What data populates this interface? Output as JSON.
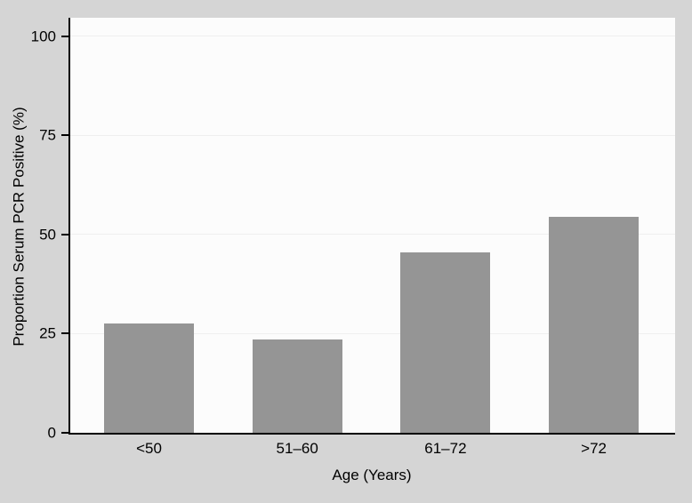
{
  "figure": {
    "background_color": "#d5d5d5",
    "plot_background_color": "#fcfcfc",
    "bar_color": "#959595",
    "axis_color": "#000000",
    "grid_color": "#efefef",
    "text_color": "#000000"
  },
  "chart_data": {
    "type": "bar",
    "title": "",
    "categories": [
      "<50",
      "51–60",
      "61–72",
      ">72"
    ],
    "values": [
      27.5,
      23.5,
      45.5,
      54.5
    ],
    "xlabel": "Age (Years)",
    "ylabel": "Proportion Serum PCR Positive (%)",
    "ylim": [
      0,
      105
    ],
    "yticks": [
      0,
      25,
      50,
      75,
      100
    ],
    "grid": true,
    "legend": false
  }
}
